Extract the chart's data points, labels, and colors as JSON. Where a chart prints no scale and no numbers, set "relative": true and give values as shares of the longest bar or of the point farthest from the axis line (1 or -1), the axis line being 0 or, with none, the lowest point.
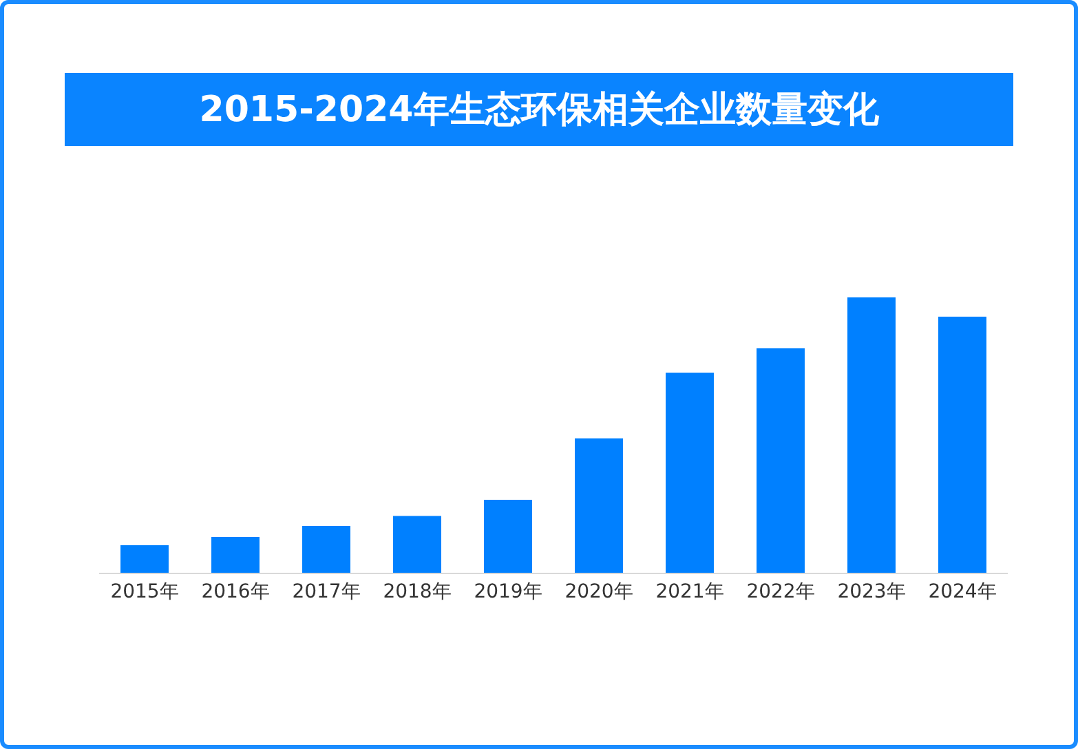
{
  "chart_data": {
    "type": "bar",
    "title": "2015-2024年生态环保相关企业数量变化",
    "categories": [
      "2015年",
      "2016年",
      "2017年",
      "2018年",
      "2019年",
      "2020年",
      "2021年",
      "2022年",
      "2023年",
      "2024年"
    ],
    "values": [
      0.1,
      0.13,
      0.17,
      0.206,
      0.265,
      0.488,
      0.726,
      0.815,
      1,
      0.93
    ],
    "color": "#0080ff",
    "relative": true,
    "grid": false,
    "legend": false
  }
}
